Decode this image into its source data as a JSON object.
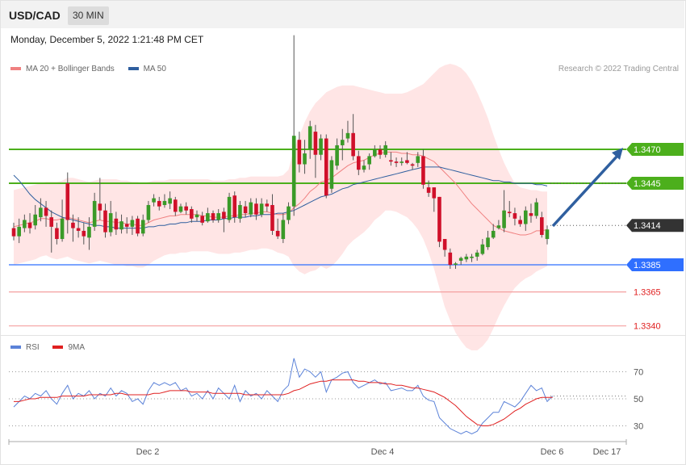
{
  "header": {
    "symbol": "USD/CAD",
    "timeframe": "30 MIN"
  },
  "timestamp": "Monday, December 5, 2022 1:21:48 PM CET",
  "legend": {
    "main": [
      {
        "label": "MA 20 + Bollinger Bands",
        "color": "#f08080"
      },
      {
        "label": "MA 50",
        "color": "#2f5f9f"
      }
    ],
    "rsi": [
      {
        "label": "RSI",
        "color": "#5b82d8"
      },
      {
        "label": "9MA",
        "color": "#e02020"
      }
    ]
  },
  "credit": "Research © 2022 Trading Central",
  "colors": {
    "green": "#4caf1c",
    "blue": "#2f6fff",
    "red": "#e02020",
    "dark": "#333333",
    "arrow": "#2f5f9f",
    "up": "#3a9a28",
    "down": "#d0102a"
  },
  "chart_data": {
    "type": "candlestick",
    "symbol": "USD/CAD",
    "timeframe": "30 MIN",
    "price_levels": [
      {
        "label": "1.3470",
        "value": 1.347,
        "style": "green-tag"
      },
      {
        "label": "1.3445",
        "value": 1.3445,
        "style": "green-tag"
      },
      {
        "label": "1.3414",
        "value": 1.3414,
        "style": "current"
      },
      {
        "label": "1.3385",
        "value": 1.3385,
        "style": "blue-tag"
      },
      {
        "label": "1.3365",
        "value": 1.3365,
        "style": "red-text"
      },
      {
        "label": "1.3340",
        "value": 1.334,
        "style": "red-text"
      }
    ],
    "x_ticks": [
      "Dec 2",
      "Dec 4",
      "Dec 6",
      "Dec 17"
    ],
    "candles": [
      [
        1.3412,
        1.3406,
        1.3416,
        1.3403
      ],
      [
        1.3406,
        1.3413,
        1.3419,
        1.3401
      ],
      [
        1.3412,
        1.3418,
        1.3422,
        1.3409
      ],
      [
        1.3416,
        1.3412,
        1.3423,
        1.3408
      ],
      [
        1.3414,
        1.3422,
        1.3429,
        1.3411
      ],
      [
        1.342,
        1.3427,
        1.3434,
        1.3417
      ],
      [
        1.3427,
        1.3421,
        1.3432,
        1.3413
      ],
      [
        1.342,
        1.3413,
        1.3425,
        1.3394
      ],
      [
        1.3412,
        1.3404,
        1.3416,
        1.34
      ],
      [
        1.3404,
        1.3419,
        1.3433,
        1.3402
      ],
      [
        1.3445,
        1.3418,
        1.3453,
        1.3408
      ],
      [
        1.3416,
        1.3412,
        1.3422,
        1.3402
      ],
      [
        1.3412,
        1.341,
        1.342,
        1.3405
      ],
      [
        1.341,
        1.3406,
        1.3416,
        1.34
      ],
      [
        1.3405,
        1.3413,
        1.342,
        1.3396
      ],
      [
        1.3413,
        1.3432,
        1.3438,
        1.341
      ],
      [
        1.343,
        1.3425,
        1.3449,
        1.3418
      ],
      [
        1.3425,
        1.3409,
        1.343,
        1.3405
      ],
      [
        1.3409,
        1.3423,
        1.3432,
        1.3406
      ],
      [
        1.3419,
        1.3411,
        1.3424,
        1.3407
      ],
      [
        1.3411,
        1.3417,
        1.3422,
        1.3408
      ],
      [
        1.3415,
        1.3413,
        1.342,
        1.3408
      ],
      [
        1.3413,
        1.3418,
        1.3421,
        1.3407
      ],
      [
        1.3419,
        1.3408,
        1.3421,
        1.3406
      ],
      [
        1.3408,
        1.3418,
        1.3422,
        1.3406
      ],
      [
        1.3418,
        1.3429,
        1.3432,
        1.3416
      ],
      [
        1.3431,
        1.3434,
        1.3437,
        1.3428
      ],
      [
        1.3432,
        1.3428,
        1.3435,
        1.3425
      ],
      [
        1.3429,
        1.3432,
        1.3437,
        1.3427
      ],
      [
        1.343,
        1.3434,
        1.3439,
        1.3426
      ],
      [
        1.3433,
        1.3424,
        1.3435,
        1.3421
      ],
      [
        1.3424,
        1.3428,
        1.343,
        1.3423
      ],
      [
        1.3428,
        1.3425,
        1.3431,
        1.3422
      ],
      [
        1.3426,
        1.3419,
        1.3428,
        1.3416
      ],
      [
        1.342,
        1.3422,
        1.3425,
        1.3417
      ],
      [
        1.3421,
        1.3416,
        1.3424,
        1.3414
      ],
      [
        1.3417,
        1.3423,
        1.3427,
        1.3416
      ],
      [
        1.3423,
        1.3418,
        1.3425,
        1.3416
      ],
      [
        1.3418,
        1.3423,
        1.3426,
        1.3416
      ],
      [
        1.3424,
        1.3419,
        1.3427,
        1.3409
      ],
      [
        1.3418,
        1.3435,
        1.3438,
        1.3416
      ],
      [
        1.3436,
        1.342,
        1.3439,
        1.3416
      ],
      [
        1.3419,
        1.3429,
        1.3432,
        1.3416
      ],
      [
        1.3428,
        1.3423,
        1.3432,
        1.342
      ],
      [
        1.3422,
        1.3431,
        1.3434,
        1.342
      ],
      [
        1.343,
        1.3422,
        1.3434,
        1.3418
      ],
      [
        1.3422,
        1.343,
        1.3434,
        1.342
      ],
      [
        1.343,
        1.3428,
        1.3433,
        1.3424
      ],
      [
        1.3429,
        1.341,
        1.3437,
        1.3407
      ],
      [
        1.341,
        1.3406,
        1.3419,
        1.3404
      ],
      [
        1.3404,
        1.3418,
        1.3423,
        1.3401
      ],
      [
        1.3418,
        1.3428,
        1.3431,
        1.3415
      ],
      [
        1.3428,
        1.348,
        1.3554,
        1.3421
      ],
      [
        1.3477,
        1.3459,
        1.3483,
        1.3453
      ],
      [
        1.3459,
        1.3467,
        1.3477,
        1.3452
      ],
      [
        1.347,
        1.3487,
        1.3491,
        1.3463
      ],
      [
        1.3483,
        1.3466,
        1.3488,
        1.3449
      ],
      [
        1.3466,
        1.3478,
        1.3481,
        1.3462
      ],
      [
        1.3478,
        1.3436,
        1.3481,
        1.3434
      ],
      [
        1.3441,
        1.3462,
        1.3465,
        1.3438
      ],
      [
        1.3458,
        1.3473,
        1.3478,
        1.3455
      ],
      [
        1.3473,
        1.3477,
        1.3485,
        1.3462
      ],
      [
        1.3478,
        1.3482,
        1.3491,
        1.3475
      ],
      [
        1.3482,
        1.3465,
        1.3496,
        1.3462
      ],
      [
        1.3465,
        1.3455,
        1.3469,
        1.3451
      ],
      [
        1.3455,
        1.3458,
        1.3462,
        1.3453
      ],
      [
        1.3459,
        1.3465,
        1.3467,
        1.3455
      ],
      [
        1.3465,
        1.347,
        1.3473,
        1.3464
      ],
      [
        1.347,
        1.3466,
        1.3473,
        1.3463
      ],
      [
        1.3466,
        1.3473,
        1.3476,
        1.3464
      ],
      [
        1.3462,
        1.3461,
        1.3468,
        1.3458
      ],
      [
        1.3461,
        1.346,
        1.3464,
        1.3457
      ],
      [
        1.346,
        1.3461,
        1.3464,
        1.3458
      ],
      [
        1.3462,
        1.346,
        1.3468,
        1.3459
      ],
      [
        1.3459,
        1.3458,
        1.346,
        1.3455
      ],
      [
        1.346,
        1.3465,
        1.3468,
        1.3457
      ],
      [
        1.3465,
        1.3444,
        1.347,
        1.3441
      ],
      [
        1.3442,
        1.3438,
        1.3447,
        1.3435
      ],
      [
        1.3442,
        1.3434,
        1.3442,
        1.3424
      ],
      [
        1.3435,
        1.3402,
        1.3435,
        1.3398
      ],
      [
        1.3404,
        1.3396,
        1.3403,
        1.3391
      ],
      [
        1.3394,
        1.3385,
        1.3397,
        1.3382
      ],
      [
        1.3385,
        1.3386,
        1.3387,
        1.3382
      ],
      [
        1.3388,
        1.339,
        1.3391,
        1.3385
      ],
      [
        1.3389,
        1.3391,
        1.3393,
        1.3387
      ],
      [
        1.339,
        1.3391,
        1.3393,
        1.3387
      ],
      [
        1.3391,
        1.3394,
        1.3396,
        1.3388
      ],
      [
        1.3393,
        1.34,
        1.3404,
        1.3392
      ],
      [
        1.3398,
        1.3405,
        1.341,
        1.3396
      ],
      [
        1.3405,
        1.341,
        1.3415,
        1.3404
      ],
      [
        1.3412,
        1.3414,
        1.3418,
        1.3411
      ],
      [
        1.3412,
        1.3425,
        1.344,
        1.3409
      ],
      [
        1.3424,
        1.3423,
        1.3432,
        1.342
      ],
      [
        1.3423,
        1.3419,
        1.3427,
        1.3414
      ],
      [
        1.3418,
        1.3415,
        1.3421,
        1.3413
      ],
      [
        1.3415,
        1.3425,
        1.3428,
        1.341
      ],
      [
        1.3423,
        1.3421,
        1.343,
        1.3416
      ],
      [
        1.3421,
        1.3431,
        1.3434,
        1.3419
      ],
      [
        1.342,
        1.3407,
        1.3424,
        1.3405
      ],
      [
        1.3404,
        1.3411,
        1.3414,
        1.34
      ]
    ],
    "ma20": [
      1.3413,
      1.3414,
      1.3415,
      1.3416,
      1.3417,
      1.3419,
      1.3419,
      1.3418,
      1.3418,
      1.3419,
      1.342,
      1.3419,
      1.3418,
      1.3417,
      1.3416,
      1.3417,
      1.3418,
      1.3417,
      1.3417,
      1.3416,
      1.3416,
      1.3415,
      1.3415,
      1.3414,
      1.3414,
      1.3416,
      1.3418,
      1.3419,
      1.342,
      1.3421,
      1.3421,
      1.3422,
      1.3422,
      1.3422,
      1.3422,
      1.3421,
      1.3421,
      1.342,
      1.342,
      1.342,
      1.3421,
      1.3421,
      1.3422,
      1.3422,
      1.3423,
      1.3423,
      1.3424,
      1.3424,
      1.3423,
      1.3422,
      1.3422,
      1.3423,
      1.3427,
      1.343,
      1.3434,
      1.3439,
      1.3442,
      1.3446,
      1.3447,
      1.3449,
      1.3452,
      1.3455,
      1.3458,
      1.346,
      1.3461,
      1.3462,
      1.3464,
      1.3466,
      1.3467,
      1.3468,
      1.3468,
      1.3468,
      1.3467,
      1.3467,
      1.3466,
      1.3466,
      1.3465,
      1.3463,
      1.3461,
      1.3457,
      1.3453,
      1.3449,
      1.3445,
      1.344,
      1.3435,
      1.343,
      1.3426,
      1.3422,
      1.3418,
      1.3414,
      1.3412,
      1.341,
      1.3409,
      1.3408,
      1.3407,
      1.3407,
      1.3408,
      1.341,
      1.341,
      1.3411
    ],
    "ma50": [
      1.3451,
      1.3447,
      1.3442,
      1.3437,
      1.3433,
      1.343,
      1.3427,
      1.3424,
      1.3422,
      1.342,
      1.3419,
      1.3418,
      1.3417,
      1.3416,
      1.3415,
      1.3414,
      1.3414,
      1.3413,
      1.3413,
      1.3412,
      1.3412,
      1.3412,
      1.3412,
      1.3412,
      1.3412,
      1.3413,
      1.3413,
      1.3414,
      1.3414,
      1.3415,
      1.3415,
      1.3416,
      1.3416,
      1.3417,
      1.3417,
      1.3417,
      1.3418,
      1.3418,
      1.3418,
      1.3419,
      1.3419,
      1.342,
      1.342,
      1.342,
      1.3421,
      1.3421,
      1.3422,
      1.3422,
      1.3422,
      1.3423,
      1.3423,
      1.3424,
      1.3425,
      1.3427,
      1.3429,
      1.3431,
      1.3433,
      1.3435,
      1.3436,
      1.3437,
      1.3439,
      1.3441,
      1.3442,
      1.3444,
      1.3445,
      1.3446,
      1.3447,
      1.3448,
      1.3449,
      1.345,
      1.3451,
      1.3452,
      1.3453,
      1.3454,
      1.3455,
      1.3456,
      1.3457,
      1.3457,
      1.3457,
      1.3457,
      1.3456,
      1.3455,
      1.3454,
      1.3453,
      1.3452,
      1.3451,
      1.345,
      1.3449,
      1.3448,
      1.3447,
      1.3447,
      1.3446,
      1.3446,
      1.3445,
      1.3445,
      1.3445,
      1.3445,
      1.3444,
      1.3444,
      1.3443
    ],
    "bb_upper": [
      1.344,
      1.3441,
      1.3442,
      1.3443,
      1.3444,
      1.3445,
      1.3446,
      1.3446,
      1.3446,
      1.3447,
      1.3449,
      1.3449,
      1.3448,
      1.3447,
      1.3446,
      1.3447,
      1.3448,
      1.3448,
      1.3448,
      1.3448,
      1.3447,
      1.3447,
      1.3446,
      1.3446,
      1.3445,
      1.3446,
      1.3447,
      1.3447,
      1.3447,
      1.3448,
      1.3448,
      1.3448,
      1.3448,
      1.3448,
      1.3448,
      1.3448,
      1.3448,
      1.3447,
      1.3447,
      1.3447,
      1.3448,
      1.3448,
      1.3449,
      1.3449,
      1.345,
      1.345,
      1.345,
      1.345,
      1.345,
      1.345,
      1.3451,
      1.3455,
      1.347,
      1.348,
      1.349,
      1.3498,
      1.3504,
      1.3508,
      1.3512,
      1.3514,
      1.3516,
      1.3517,
      1.3517,
      1.3517,
      1.3516,
      1.3515,
      1.3514,
      1.3513,
      1.3512,
      1.3511,
      1.3511,
      1.3511,
      1.3511,
      1.3512,
      1.3514,
      1.3516,
      1.3518,
      1.3522,
      1.3526,
      1.353,
      1.3532,
      1.3533,
      1.3532,
      1.353,
      1.3526,
      1.352,
      1.3512,
      1.3503,
      1.3493,
      1.3481,
      1.347,
      1.346,
      1.3452,
      1.3445,
      1.3442,
      1.3441,
      1.344,
      1.344,
      1.3439,
      1.3439
    ],
    "bb_lower": [
      1.3385,
      1.3386,
      1.3387,
      1.3388,
      1.3389,
      1.3391,
      1.3392,
      1.339,
      1.3389,
      1.339,
      1.3391,
      1.3389,
      1.3388,
      1.3387,
      1.3386,
      1.3387,
      1.3388,
      1.3387,
      1.3386,
      1.3385,
      1.3385,
      1.3384,
      1.3384,
      1.3383,
      1.3383,
      1.3385,
      1.3388,
      1.339,
      1.3392,
      1.3393,
      1.3393,
      1.3394,
      1.3394,
      1.3395,
      1.3395,
      1.3395,
      1.3395,
      1.3394,
      1.3393,
      1.3393,
      1.3393,
      1.3394,
      1.3394,
      1.3395,
      1.3396,
      1.3396,
      1.3397,
      1.3397,
      1.3396,
      1.3394,
      1.3393,
      1.3391,
      1.3384,
      1.338,
      1.3378,
      1.338,
      1.3381,
      1.3384,
      1.3382,
      1.3384,
      1.3388,
      1.3393,
      1.3399,
      1.3403,
      1.3406,
      1.3409,
      1.3413,
      1.3418,
      1.3421,
      1.3425,
      1.3425,
      1.3424,
      1.3422,
      1.342,
      1.3416,
      1.3411,
      1.3404,
      1.3394,
      1.3382,
      1.3368,
      1.3354,
      1.3344,
      1.3335,
      1.3329,
      1.3324,
      1.3322,
      1.3322,
      1.3325,
      1.333,
      1.3338,
      1.3347,
      1.3355,
      1.3362,
      1.3368,
      1.3372,
      1.3375,
      1.3377,
      1.338,
      1.3382,
      1.3384
    ],
    "rsi": {
      "ylabels": [
        "70",
        "50",
        "30"
      ],
      "levels": [
        70,
        50,
        30
      ],
      "rsi": [
        44,
        48,
        52,
        50,
        54,
        52,
        56,
        50,
        46,
        54,
        60,
        50,
        54,
        52,
        56,
        50,
        54,
        52,
        58,
        52,
        56,
        54,
        48,
        50,
        46,
        56,
        62,
        60,
        62,
        60,
        62,
        56,
        58,
        52,
        54,
        50,
        56,
        50,
        58,
        54,
        50,
        60,
        48,
        56,
        52,
        54,
        50,
        56,
        52,
        48,
        56,
        60,
        80,
        66,
        72,
        70,
        66,
        70,
        55,
        64,
        66,
        69,
        70,
        62,
        58,
        60,
        62,
        64,
        61,
        62,
        56,
        57,
        58,
        56,
        56,
        60,
        52,
        49,
        48,
        36,
        32,
        28,
        26,
        24,
        26,
        24,
        26,
        32,
        36,
        40,
        40,
        48,
        46,
        44,
        48,
        54,
        60,
        56,
        58,
        48,
        52
      ],
      "ma9": [
        48,
        48,
        49,
        50,
        50,
        51,
        51,
        51,
        51,
        52,
        52,
        52,
        52,
        52,
        53,
        53,
        53,
        53,
        53,
        54,
        54,
        53,
        53,
        53,
        53,
        53,
        54,
        54,
        55,
        56,
        56,
        56,
        56,
        55,
        55,
        55,
        55,
        54,
        54,
        54,
        54,
        54,
        54,
        53,
        53,
        53,
        53,
        53,
        53,
        53,
        53,
        54,
        56,
        57,
        59,
        61,
        62,
        63,
        63,
        64,
        64,
        64,
        64,
        64,
        63,
        63,
        62,
        62,
        62,
        61,
        61,
        60,
        60,
        59,
        58,
        58,
        57,
        56,
        55,
        53,
        51,
        48,
        45,
        41,
        37,
        34,
        31,
        30,
        30,
        31,
        33,
        35,
        38,
        41,
        43,
        46,
        48,
        50,
        51,
        51,
        51
      ]
    }
  }
}
